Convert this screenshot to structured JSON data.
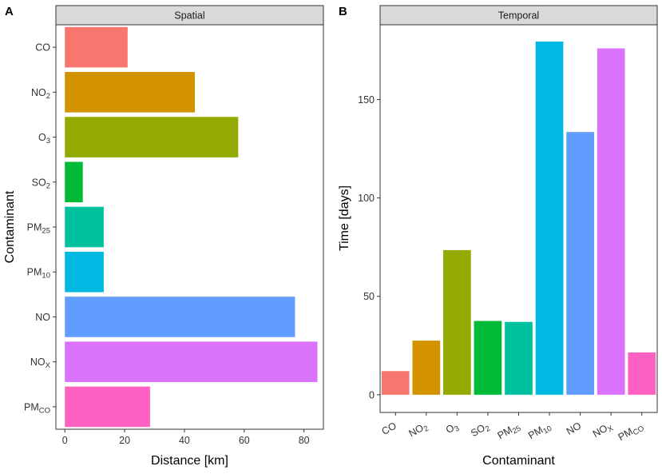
{
  "chart_data": [
    {
      "panel_letter": "A",
      "type": "bar",
      "orientation": "horizontal",
      "title": "Spatial",
      "xlabel": "Distance [km]",
      "ylabel": "Contaminant",
      "categories": [
        {
          "base": "CO",
          "sub": ""
        },
        {
          "base": "NO",
          "sub": "2"
        },
        {
          "base": "O",
          "sub": "3"
        },
        {
          "base": "SO",
          "sub": "2"
        },
        {
          "base": "PM",
          "sub": "25"
        },
        {
          "base": "PM",
          "sub": "10"
        },
        {
          "base": "NO",
          "sub": ""
        },
        {
          "base": "NO",
          "sub": "X"
        },
        {
          "base": "PM",
          "sub": "CO"
        }
      ],
      "values": [
        21,
        43.5,
        58,
        6,
        13,
        13,
        77,
        84.5,
        28.5
      ],
      "colors": [
        "#F8766D",
        "#D39200",
        "#93AA00",
        "#00BA38",
        "#00C19F",
        "#00B9E3",
        "#619CFF",
        "#DB72FB",
        "#FF61C3"
      ],
      "xlim": [
        -3,
        86.5
      ],
      "xticks": [
        0,
        20,
        40,
        60,
        80
      ],
      "xtick_labels": [
        "0",
        "20",
        "40",
        "60",
        "80"
      ]
    },
    {
      "panel_letter": "B",
      "type": "bar",
      "orientation": "vertical",
      "title": "Temporal",
      "xlabel": "Contaminant",
      "ylabel": "Time [days]",
      "categories": [
        {
          "base": "CO",
          "sub": ""
        },
        {
          "base": "NO",
          "sub": "2"
        },
        {
          "base": "O",
          "sub": "3"
        },
        {
          "base": "SO",
          "sub": "2"
        },
        {
          "base": "PM",
          "sub": "25"
        },
        {
          "base": "PM",
          "sub": "10"
        },
        {
          "base": "NO",
          "sub": ""
        },
        {
          "base": "NO",
          "sub": "X"
        },
        {
          "base": "PM",
          "sub": "CO"
        }
      ],
      "values": [
        12,
        27.5,
        73.5,
        37.5,
        37,
        179.5,
        133.5,
        176,
        21.5
      ],
      "colors": [
        "#F8766D",
        "#D39200",
        "#93AA00",
        "#00BA38",
        "#00C19F",
        "#00B9E3",
        "#619CFF",
        "#DB72FB",
        "#FF61C3"
      ],
      "ylim": [
        -9,
        188
      ],
      "yticks": [
        0,
        50,
        100,
        150
      ],
      "ytick_labels": [
        "0",
        "50",
        "100",
        "150"
      ]
    }
  ]
}
